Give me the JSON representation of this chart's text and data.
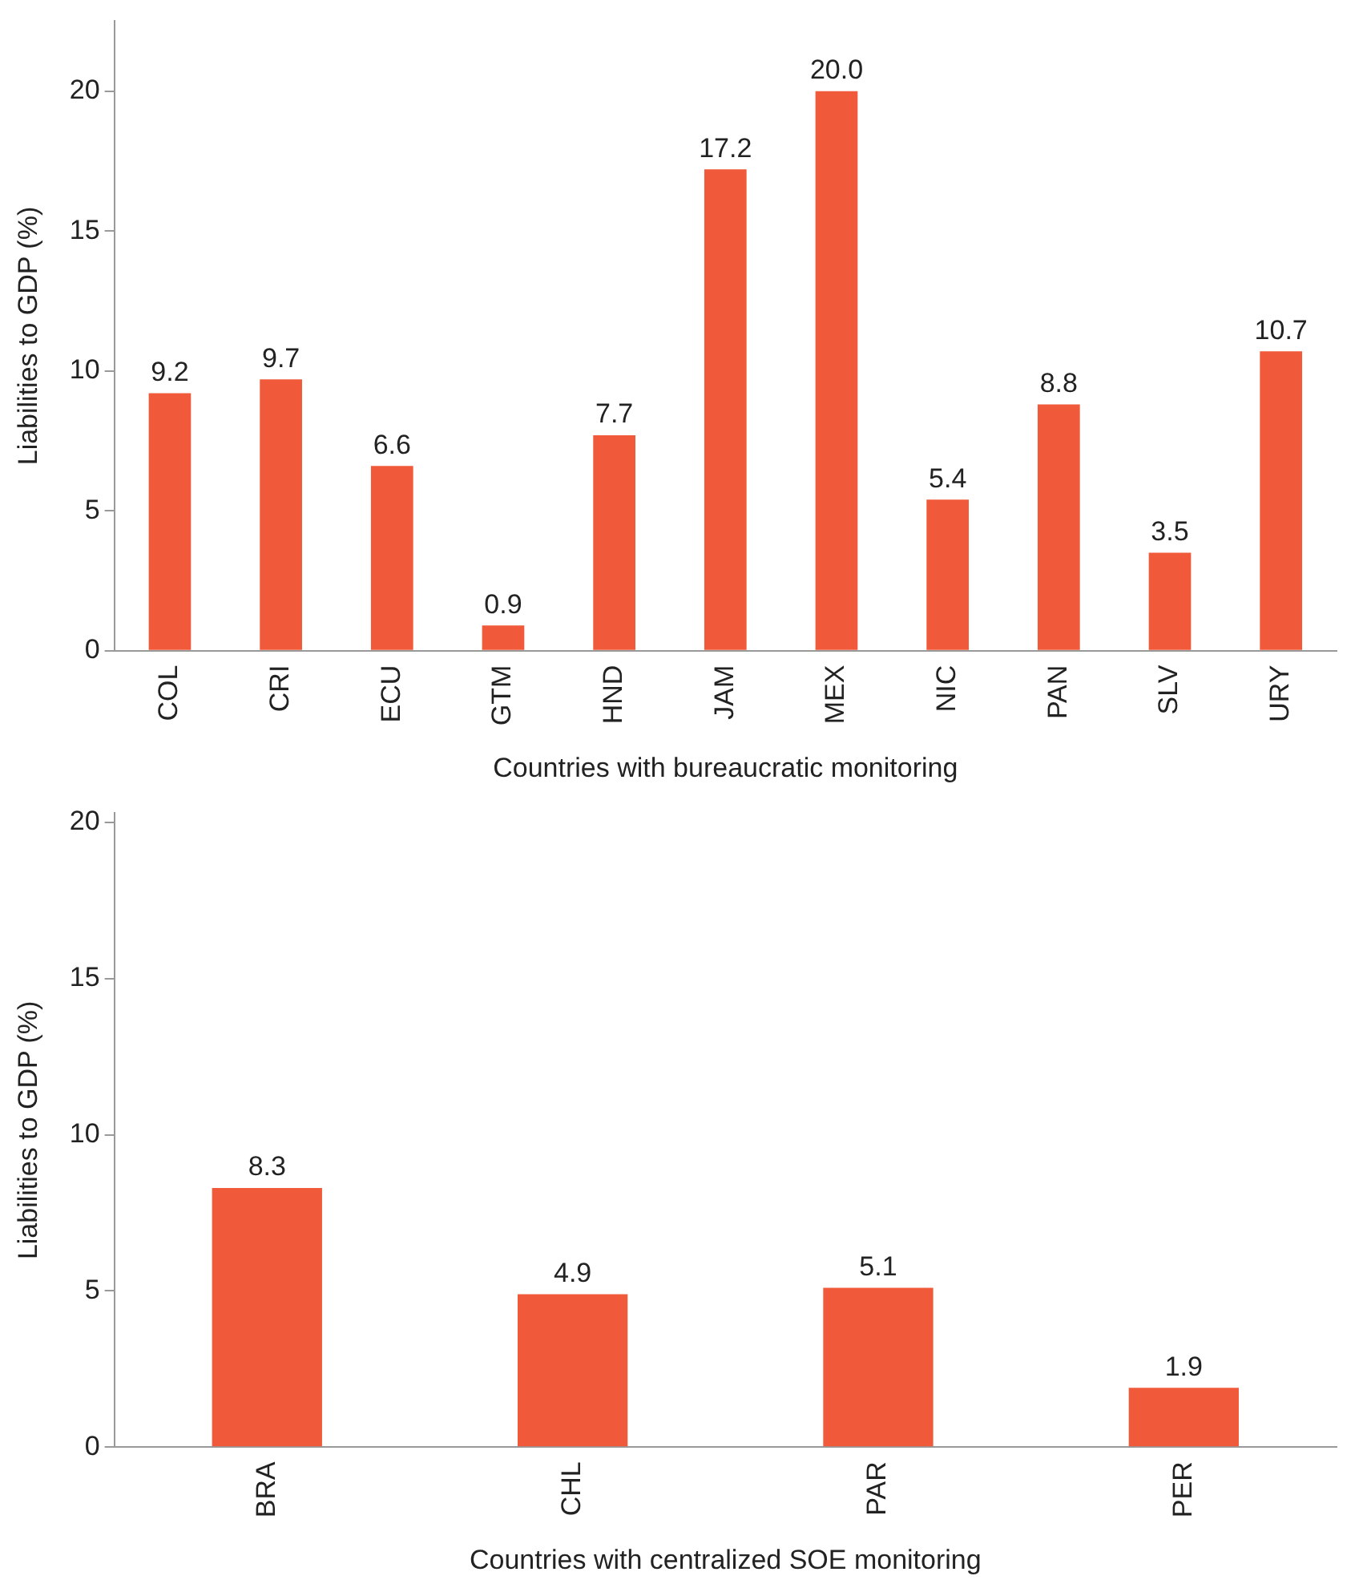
{
  "chart_data": [
    {
      "type": "bar",
      "xlabel": "Countries with bureaucratic monitoring",
      "ylabel": "Liabilities to GDP (%)",
      "categories": [
        "COL",
        "CRI",
        "ECU",
        "GTM",
        "HND",
        "JAM",
        "MEX",
        "NIC",
        "PAN",
        "SLV",
        "URY"
      ],
      "color": "#f05a3a",
      "values": [
        9.2,
        9.7,
        6.6,
        0.9,
        7.7,
        17.2,
        20.0,
        5.4,
        8.8,
        3.5,
        10.7
      ],
      "value_labels": [
        "9.2",
        "9.7",
        "6.6",
        "0.9",
        "7.7",
        "17.2",
        "20.0",
        "5.4",
        "8.8",
        "3.5",
        "10.7"
      ],
      "ylim": [
        0,
        22.5
      ],
      "yticks": [
        0,
        5,
        10,
        15,
        20
      ],
      "grid": false,
      "legend": false
    },
    {
      "type": "bar",
      "xlabel": "Countries with centralized SOE monitoring",
      "ylabel": "Liabilities to GDP (%)",
      "categories": [
        "BRA",
        "CHL",
        "PAR",
        "PER"
      ],
      "color": "#f05a3a",
      "values": [
        8.3,
        4.9,
        5.1,
        1.9
      ],
      "value_labels": [
        "8.3",
        "4.9",
        "5.1",
        "1.9"
      ],
      "ylim": [
        0,
        20.3
      ],
      "yticks": [
        0,
        5,
        10,
        15,
        20
      ],
      "grid": false,
      "legend": false
    }
  ]
}
